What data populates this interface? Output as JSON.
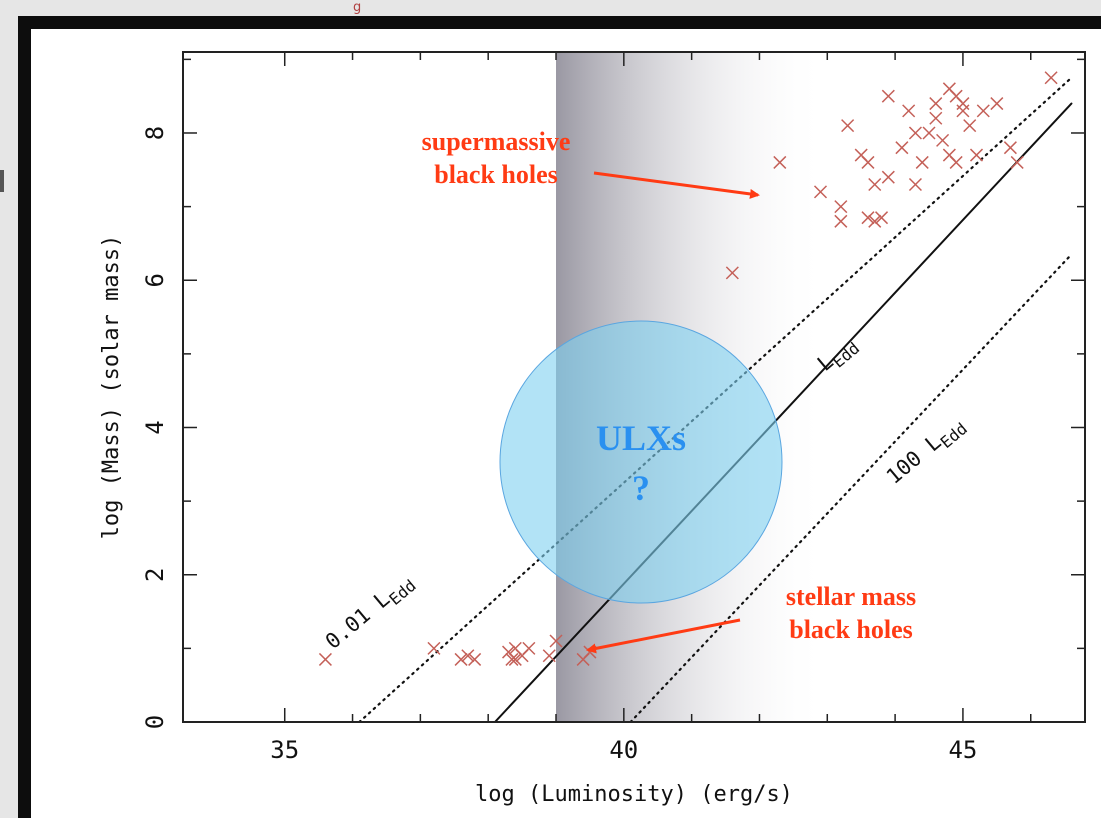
{
  "chart_data": {
    "type": "scatter",
    "xlabel": "log (Luminosity) (erg/s)",
    "ylabel": "log (Mass) (solar mass)",
    "xlim": [
      33.5,
      46.8
    ],
    "ylim": [
      0,
      9.1
    ],
    "xticks": [
      "35",
      "40",
      "45"
    ],
    "yticks": [
      "0",
      "2",
      "4",
      "6",
      "8"
    ],
    "shaded_band": {
      "x_from": 39,
      "x_to": 43,
      "color": "#9a98a3"
    },
    "lines": [
      {
        "name": "0.01 LEdd",
        "style": "dotted",
        "points": [
          [
            36.1,
            0
          ],
          [
            46.6,
            8.75
          ]
        ]
      },
      {
        "name": "LEdd",
        "style": "solid",
        "points": [
          [
            38.1,
            0
          ],
          [
            46.6,
            8.4
          ]
        ]
      },
      {
        "name": "100 LEdd",
        "style": "dotted",
        "points": [
          [
            40.1,
            0
          ],
          [
            46.6,
            6.35
          ]
        ]
      }
    ],
    "points": [
      [
        35.6,
        0.85
      ],
      [
        37.2,
        1.0
      ],
      [
        37.6,
        0.85
      ],
      [
        37.8,
        0.85
      ],
      [
        37.7,
        0.9
      ],
      [
        38.3,
        0.95
      ],
      [
        38.35,
        0.85
      ],
      [
        38.4,
        1.0
      ],
      [
        38.5,
        0.9
      ],
      [
        38.4,
        0.85
      ],
      [
        38.6,
        1.0
      ],
      [
        38.9,
        0.9
      ],
      [
        39.0,
        1.1
      ],
      [
        39.4,
        0.85
      ],
      [
        39.5,
        0.95
      ],
      [
        41.6,
        6.1
      ],
      [
        42.3,
        7.6
      ],
      [
        42.9,
        7.2
      ],
      [
        43.2,
        6.8
      ],
      [
        43.2,
        7.0
      ],
      [
        43.3,
        8.1
      ],
      [
        43.5,
        7.7
      ],
      [
        43.6,
        7.6
      ],
      [
        43.7,
        7.3
      ],
      [
        43.6,
        6.85
      ],
      [
        43.7,
        6.8
      ],
      [
        43.8,
        6.85
      ],
      [
        43.9,
        8.5
      ],
      [
        43.9,
        7.4
      ],
      [
        44.1,
        7.8
      ],
      [
        44.2,
        8.3
      ],
      [
        44.3,
        8.0
      ],
      [
        44.3,
        7.3
      ],
      [
        44.4,
        7.6
      ],
      [
        44.5,
        8.0
      ],
      [
        44.6,
        8.4
      ],
      [
        44.6,
        8.2
      ],
      [
        44.7,
        7.9
      ],
      [
        44.8,
        8.6
      ],
      [
        44.8,
        7.7
      ],
      [
        44.9,
        8.5
      ],
      [
        44.9,
        7.6
      ],
      [
        45.0,
        8.3
      ],
      [
        45.0,
        8.4
      ],
      [
        45.1,
        8.1
      ],
      [
        45.2,
        7.7
      ],
      [
        45.3,
        8.3
      ],
      [
        45.5,
        8.4
      ],
      [
        45.7,
        7.8
      ],
      [
        45.8,
        7.6
      ],
      [
        46.3,
        8.75
      ]
    ],
    "point_color": "#c46058",
    "annotations": {
      "smbh": "supermassive\nblack holes",
      "stellar": "stellar mass\nblack holes",
      "ulx": "ULXs",
      "ulx_q": "?",
      "l001_a": "0.01 L",
      "l001_b": "Edd",
      "ledd_a": "L",
      "ledd_b": "Edd",
      "l100_a": "100 L",
      "l100_b": "Edd"
    },
    "annotation_color": "#ff3b14",
    "ulx_color": "#2a90f0",
    "ulx_fill": "#7fd0f0"
  },
  "top_text": "g"
}
